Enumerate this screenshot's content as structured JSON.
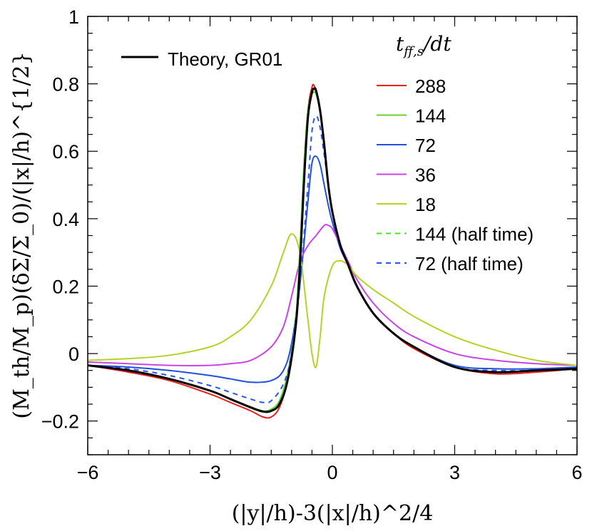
{
  "chart_data": {
    "type": "line",
    "title": "",
    "xlabel": "(|y|/h)-3(|x|/h)^2/4",
    "ylabel": "(M_th/M_p)(δΣ/Σ_0)/(|x|/h)^{1/2}",
    "xlim": [
      -6,
      6
    ],
    "ylim": [
      -0.3,
      1.0
    ],
    "xticks": [
      -6,
      -3,
      0,
      3,
      6
    ],
    "xtick_labels": [
      "−6",
      "−3",
      "0",
      "3",
      "6"
    ],
    "yticks": [
      -0.2,
      0,
      0.2,
      0.4,
      0.6,
      0.8,
      1
    ],
    "ytick_labels": [
      "−0.2",
      "0",
      "0.2",
      "0.4",
      "0.6",
      "0.8",
      "1"
    ],
    "legend_title": "t_ff,s/dt",
    "theory_label": "Theory, GR01",
    "series": [
      {
        "name": "Theory, GR01",
        "color": "#000000",
        "dash": "solid",
        "width": 3,
        "x": [
          -6,
          -5,
          -4,
          -3,
          -2.5,
          -2,
          -1.7,
          -1.5,
          -1.3,
          -1.1,
          -0.9,
          -0.8,
          -0.7,
          -0.6,
          -0.5,
          -0.45,
          -0.4,
          -0.3,
          -0.2,
          -0.1,
          0,
          0.2,
          0.4,
          0.6,
          1,
          1.5,
          2,
          3,
          4,
          5,
          6
        ],
        "y": [
          -0.035,
          -0.05,
          -0.075,
          -0.11,
          -0.135,
          -0.16,
          -0.172,
          -0.17,
          -0.15,
          -0.08,
          0.08,
          0.25,
          0.5,
          0.7,
          0.775,
          0.785,
          0.78,
          0.72,
          0.62,
          0.5,
          0.42,
          0.32,
          0.26,
          0.2,
          0.12,
          0.06,
          0.02,
          -0.04,
          -0.055,
          -0.05,
          -0.045
        ]
      },
      {
        "name": "288",
        "color": "#e8201b",
        "dash": "solid",
        "width": 2,
        "x": [
          -6,
          -5,
          -4,
          -3,
          -2.5,
          -2,
          -1.7,
          -1.5,
          -1.3,
          -1.1,
          -0.9,
          -0.8,
          -0.7,
          -0.6,
          -0.5,
          -0.45,
          -0.4,
          -0.3,
          -0.2,
          -0.1,
          0,
          0.2,
          0.4,
          0.6,
          1,
          1.5,
          2,
          3,
          4,
          5,
          6
        ],
        "y": [
          -0.035,
          -0.055,
          -0.08,
          -0.12,
          -0.145,
          -0.17,
          -0.188,
          -0.188,
          -0.16,
          -0.08,
          0.08,
          0.25,
          0.52,
          0.72,
          0.79,
          0.795,
          0.775,
          0.715,
          0.62,
          0.5,
          0.42,
          0.32,
          0.255,
          0.2,
          0.12,
          0.06,
          0.015,
          -0.04,
          -0.06,
          -0.055,
          -0.045
        ]
      },
      {
        "name": "144",
        "color": "#6cd02c",
        "dash": "solid",
        "width": 2,
        "x": [
          -6,
          -5,
          -4,
          -3,
          -2.5,
          -2,
          -1.7,
          -1.5,
          -1.3,
          -1.1,
          -0.9,
          -0.8,
          -0.7,
          -0.6,
          -0.5,
          -0.45,
          -0.4,
          -0.3,
          -0.2,
          -0.1,
          0,
          0.2,
          0.4,
          0.6,
          1,
          1.5,
          2,
          3,
          4,
          5,
          6
        ],
        "y": [
          -0.035,
          -0.05,
          -0.075,
          -0.11,
          -0.135,
          -0.158,
          -0.17,
          -0.165,
          -0.14,
          -0.06,
          0.1,
          0.3,
          0.55,
          0.72,
          0.77,
          0.775,
          0.77,
          0.72,
          0.62,
          0.5,
          0.42,
          0.32,
          0.26,
          0.2,
          0.12,
          0.06,
          0.02,
          -0.04,
          -0.055,
          -0.05,
          -0.045
        ]
      },
      {
        "name": "72",
        "color": "#2050dd",
        "dash": "solid",
        "width": 2,
        "x": [
          -6,
          -5,
          -4,
          -3,
          -2.5,
          -2,
          -1.5,
          -1.2,
          -1,
          -0.8,
          -0.6,
          -0.5,
          -0.4,
          -0.3,
          -0.2,
          -0.1,
          0,
          0.2,
          0.4,
          0.6,
          1,
          1.5,
          2,
          3,
          4,
          5,
          6
        ],
        "y": [
          -0.035,
          -0.04,
          -0.05,
          -0.065,
          -0.075,
          -0.085,
          -0.08,
          -0.05,
          0.03,
          0.2,
          0.45,
          0.565,
          0.585,
          0.56,
          0.5,
          0.44,
          0.39,
          0.31,
          0.26,
          0.2,
          0.12,
          0.06,
          0.02,
          -0.035,
          -0.045,
          -0.045,
          -0.04
        ]
      },
      {
        "name": "36",
        "color": "#c846e6",
        "dash": "solid",
        "width": 2,
        "x": [
          -6,
          -5,
          -4,
          -3,
          -2.5,
          -2,
          -1.5,
          -1.2,
          -1,
          -0.8,
          -0.6,
          -0.4,
          -0.2,
          -0.1,
          0,
          0.2,
          0.4,
          0.6,
          1,
          1.5,
          2,
          3,
          4,
          5,
          6
        ],
        "y": [
          -0.025,
          -0.03,
          -0.035,
          -0.035,
          -0.03,
          -0.02,
          0.02,
          0.08,
          0.17,
          0.27,
          0.32,
          0.35,
          0.38,
          0.38,
          0.37,
          0.32,
          0.27,
          0.22,
          0.15,
          0.09,
          0.05,
          0.0,
          -0.02,
          -0.03,
          -0.035
        ]
      },
      {
        "name": "18",
        "color": "#b5d226",
        "dash": "solid",
        "width": 2,
        "x": [
          -6,
          -5,
          -4,
          -3,
          -2.5,
          -2,
          -1.5,
          -1.2,
          -1,
          -0.8,
          -0.6,
          -0.5,
          -0.4,
          -0.3,
          -0.2,
          0,
          0.2,
          0.4,
          0.6,
          1,
          1.5,
          2,
          3,
          4,
          5,
          6
        ],
        "y": [
          -0.02,
          -0.015,
          -0.005,
          0.02,
          0.05,
          0.1,
          0.2,
          0.3,
          0.355,
          0.3,
          0.1,
          0.0,
          -0.04,
          0.05,
          0.17,
          0.26,
          0.275,
          0.26,
          0.23,
          0.19,
          0.15,
          0.11,
          0.05,
          0.01,
          -0.02,
          -0.035
        ]
      },
      {
        "name": "144 (half time)",
        "color": "#4ee026",
        "dash": "dashed",
        "width": 2,
        "x": [
          -6,
          -5,
          -4,
          -3,
          -2.5,
          -2,
          -1.7,
          -1.5,
          -1.3,
          -1.1,
          -0.9,
          -0.8,
          -0.7,
          -0.6,
          -0.5,
          -0.45,
          -0.4,
          -0.3,
          -0.2,
          -0.1,
          0,
          0.2,
          0.4,
          0.6,
          1,
          1.5,
          2,
          3,
          4,
          5,
          6
        ],
        "y": [
          -0.035,
          -0.05,
          -0.075,
          -0.11,
          -0.135,
          -0.158,
          -0.17,
          -0.165,
          -0.14,
          -0.06,
          0.1,
          0.3,
          0.55,
          0.72,
          0.77,
          0.775,
          0.77,
          0.72,
          0.62,
          0.5,
          0.42,
          0.32,
          0.26,
          0.2,
          0.12,
          0.06,
          0.02,
          -0.04,
          -0.055,
          -0.05,
          -0.045
        ]
      },
      {
        "name": "72 (half time)",
        "color": "#2a55ee",
        "dash": "dashed",
        "width": 2,
        "x": [
          -6,
          -5,
          -4,
          -3,
          -2.5,
          -2,
          -1.7,
          -1.5,
          -1.2,
          -1,
          -0.8,
          -0.6,
          -0.5,
          -0.4,
          -0.3,
          -0.2,
          -0.1,
          0,
          0.2,
          0.4,
          0.6,
          1,
          1.5,
          2,
          3,
          4,
          5,
          6
        ],
        "y": [
          -0.035,
          -0.045,
          -0.065,
          -0.095,
          -0.115,
          -0.135,
          -0.145,
          -0.14,
          -0.09,
          0.0,
          0.2,
          0.5,
          0.66,
          0.705,
          0.67,
          0.59,
          0.5,
          0.42,
          0.32,
          0.26,
          0.2,
          0.12,
          0.06,
          0.02,
          -0.04,
          -0.05,
          -0.05,
          -0.045
        ]
      }
    ]
  }
}
